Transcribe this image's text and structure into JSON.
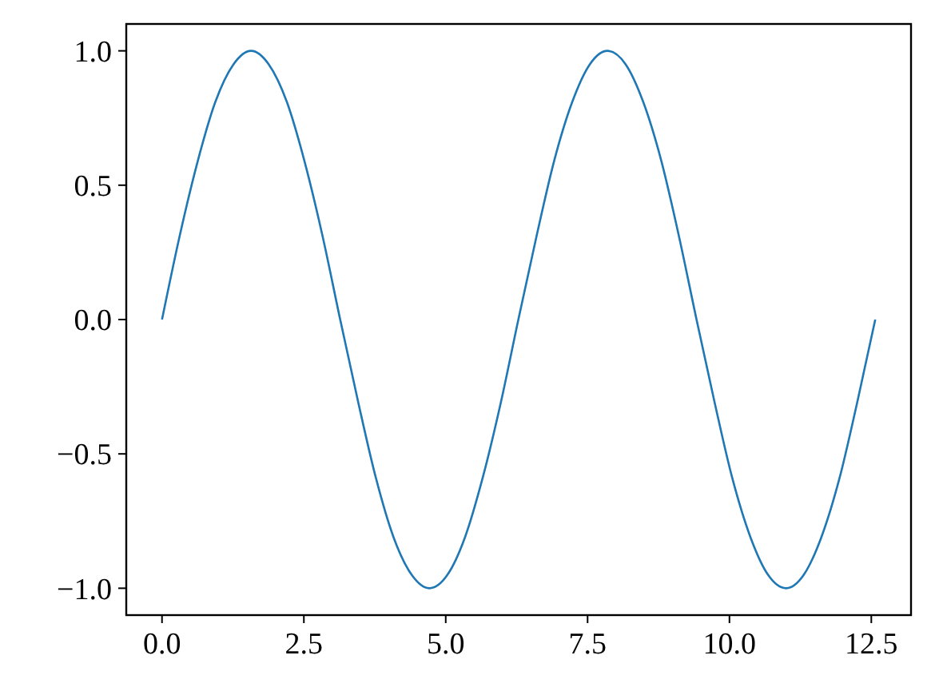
{
  "chart_data": {
    "type": "line",
    "x": [
      0,
      0.31,
      0.63,
      0.94,
      1.26,
      1.57,
      1.88,
      2.2,
      2.51,
      2.83,
      3.14,
      3.46,
      3.77,
      4.08,
      4.4,
      4.71,
      5.03,
      5.34,
      5.65,
      5.97,
      6.28,
      6.6,
      6.91,
      7.23,
      7.54,
      7.85,
      8.17,
      8.48,
      8.8,
      9.11,
      9.42,
      9.74,
      10.05,
      10.37,
      10.68,
      11,
      11.31,
      11.62,
      11.94,
      12.25,
      12.57
    ],
    "series": [
      {
        "color": "#1f77b4",
        "values": [
          0,
          0.31,
          0.59,
          0.81,
          0.95,
          1,
          0.95,
          0.81,
          0.59,
          0.31,
          0,
          -0.31,
          -0.59,
          -0.81,
          -0.95,
          -1,
          -0.95,
          -0.81,
          -0.59,
          -0.31,
          0,
          0.31,
          0.59,
          0.81,
          0.95,
          1,
          0.95,
          0.81,
          0.59,
          0.31,
          0,
          -0.31,
          -0.59,
          -0.81,
          -0.95,
          -1,
          -0.95,
          -0.81,
          -0.59,
          -0.31,
          0
        ]
      }
    ],
    "xlim": [
      -0.63,
      13.2
    ],
    "ylim": [
      -1.1,
      1.1
    ],
    "xticks": [
      {
        "value": 0,
        "label": "0.0"
      },
      {
        "value": 2.5,
        "label": "2.5"
      },
      {
        "value": 5,
        "label": "5.0"
      },
      {
        "value": 7.5,
        "label": "7.5"
      },
      {
        "value": 10,
        "label": "10.0"
      },
      {
        "value": 12.5,
        "label": "12.5"
      }
    ],
    "yticks": [
      {
        "value": -1,
        "label": "−1.0"
      },
      {
        "value": -0.5,
        "label": "−0.5"
      },
      {
        "value": 0,
        "label": "0.0"
      },
      {
        "value": 0.5,
        "label": "0.5"
      },
      {
        "value": 1,
        "label": "1.0"
      }
    ],
    "grid": false,
    "marker": "none",
    "line_style": "solid"
  }
}
